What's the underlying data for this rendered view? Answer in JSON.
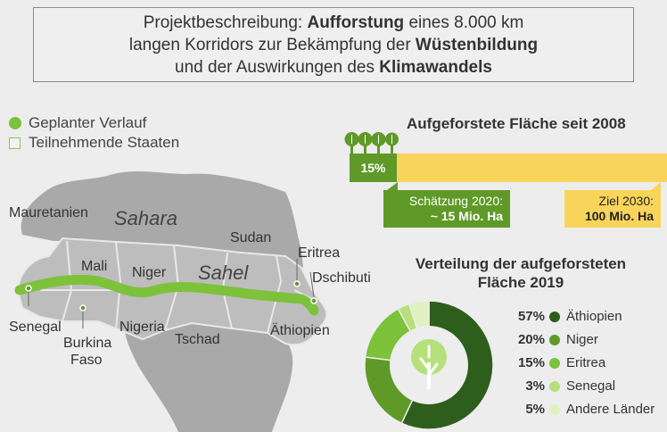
{
  "header": {
    "line1_pre": "Projektbeschreibung: ",
    "line1_b": "Aufforstung",
    "line1_post": " eines 8.000 km",
    "line2_pre": "langen Korridors zur Bekämpfung der ",
    "line2_b": "Wüstenbildung",
    "line3_pre": "und der Auswirkungen des ",
    "line3_b": "Klimawandels"
  },
  "legend": {
    "route": "Geplanter Verlauf",
    "states": "Teilnehmende Staaten"
  },
  "map": {
    "sahara": "Sahara",
    "sahel": "Sahel",
    "countries": {
      "mauretanien": "Mauretanien",
      "mali": "Mali",
      "niger": "Niger",
      "sudan": "Sudan",
      "eritrea": "Eritrea",
      "dschibuti": "Dschibuti",
      "senegal": "Senegal",
      "burkina_1": "Burkina",
      "burkina_2": "Faso",
      "nigeria": "Nigeria",
      "tschad": "Tschad",
      "aethiopien": "Äthiopien"
    }
  },
  "progress": {
    "title": "Aufgeforstete Fläche seit 2008",
    "percent_label": "15%",
    "percent_value": 15,
    "estimate_line1": "Schätzung 2020:",
    "estimate_line2": "~ 15 Mio. Ha",
    "goal_line1": "Ziel 2030:",
    "goal_line2": "100 Mio. Ha"
  },
  "donut": {
    "title_line1": "Verteilung der aufgeforsteten",
    "title_line2": "Fläche 2019"
  },
  "chart_data": {
    "type": "pie",
    "title": "Verteilung der aufgeforsteten Fläche 2019",
    "categories": [
      "Äthiopien",
      "Niger",
      "Eritrea",
      "Senegal",
      "Andere Länder"
    ],
    "values": [
      57,
      20,
      15,
      3,
      5
    ],
    "labels": [
      "57%",
      "20%",
      "15%",
      "3%",
      "5%"
    ],
    "colors": [
      "#2e5e1c",
      "#5f9a28",
      "#7cc23b",
      "#b6e07a",
      "#dff0c2"
    ]
  },
  "colors": {
    "route": "#7cc23b",
    "bar_fill": "#5f9a28",
    "bar_bg": "#f8d55a",
    "land": "#a8a8a8",
    "states": "#bcbcbc"
  }
}
